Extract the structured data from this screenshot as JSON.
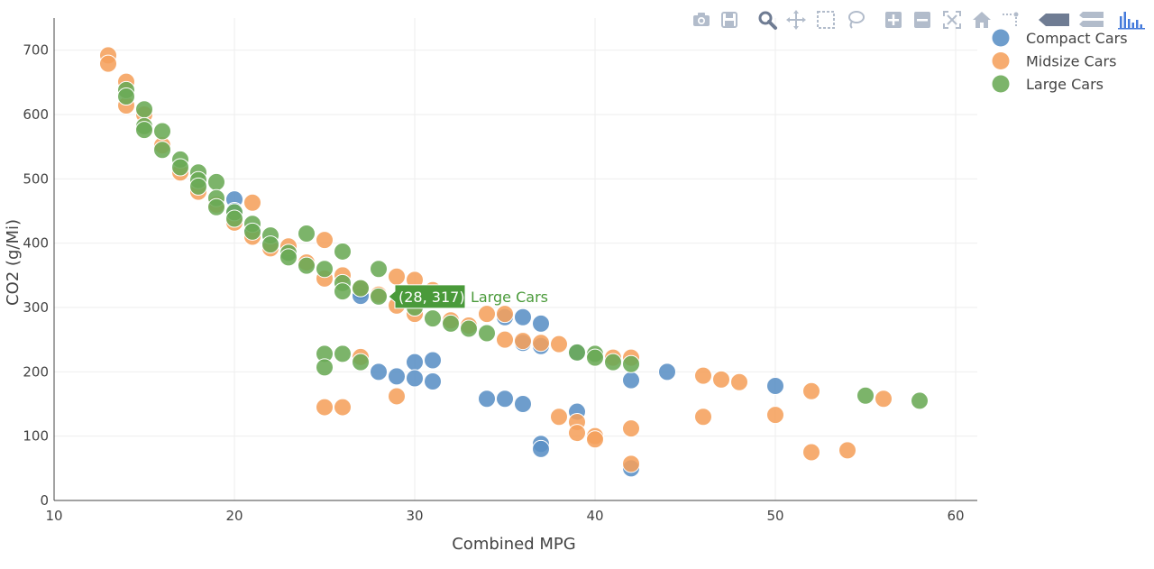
{
  "chart_data": {
    "type": "scatter",
    "title": "",
    "xlabel": "Combined MPG",
    "ylabel": "CO2 (g/Mi)",
    "xlim": [
      10,
      61.2
    ],
    "ylim": [
      0,
      750
    ],
    "xticks": [
      10,
      20,
      30,
      40,
      50,
      60
    ],
    "yticks": [
      0,
      100,
      200,
      300,
      400,
      500,
      600,
      700
    ],
    "grid": true,
    "legend_position": "top-right",
    "series": [
      {
        "name": "Compact Cars",
        "color": "#5a8fc5",
        "points": [
          [
            20,
            468
          ],
          [
            20,
            450
          ],
          [
            21,
            420
          ],
          [
            22,
            400
          ],
          [
            23,
            385
          ],
          [
            27,
            325
          ],
          [
            27,
            318
          ],
          [
            28,
            200
          ],
          [
            29,
            193
          ],
          [
            30,
            215
          ],
          [
            30,
            190
          ],
          [
            31,
            218
          ],
          [
            31,
            185
          ],
          [
            34,
            158
          ],
          [
            35,
            158
          ],
          [
            35,
            285
          ],
          [
            36,
            285
          ],
          [
            36,
            150
          ],
          [
            36,
            245
          ],
          [
            37,
            275
          ],
          [
            37,
            240
          ],
          [
            37,
            88
          ],
          [
            37,
            80
          ],
          [
            39,
            138
          ],
          [
            39,
            230
          ],
          [
            42,
            187
          ],
          [
            42,
            50
          ],
          [
            44,
            200
          ],
          [
            50,
            178
          ]
        ]
      },
      {
        "name": "Midsize Cars",
        "color": "#f5a05c",
        "points": [
          [
            13,
            692
          ],
          [
            13,
            679
          ],
          [
            14,
            651
          ],
          [
            14,
            614
          ],
          [
            15,
            600
          ],
          [
            16,
            552
          ],
          [
            17,
            510
          ],
          [
            18,
            480
          ],
          [
            19,
            460
          ],
          [
            20,
            432
          ],
          [
            21,
            463
          ],
          [
            21,
            410
          ],
          [
            22,
            392
          ],
          [
            23,
            395
          ],
          [
            24,
            370
          ],
          [
            25,
            405
          ],
          [
            25,
            345
          ],
          [
            25,
            145
          ],
          [
            26,
            350
          ],
          [
            26,
            145
          ],
          [
            27,
            223
          ],
          [
            27,
            330
          ],
          [
            28,
            320
          ],
          [
            29,
            348
          ],
          [
            29,
            303
          ],
          [
            29,
            162
          ],
          [
            30,
            343
          ],
          [
            30,
            290
          ],
          [
            31,
            327
          ],
          [
            32,
            280
          ],
          [
            33,
            272
          ],
          [
            34,
            290
          ],
          [
            35,
            290
          ],
          [
            35,
            250
          ],
          [
            36,
            248
          ],
          [
            37,
            245
          ],
          [
            38,
            243
          ],
          [
            38,
            130
          ],
          [
            39,
            122
          ],
          [
            39,
            105
          ],
          [
            40,
            100
          ],
          [
            40,
            95
          ],
          [
            41,
            222
          ],
          [
            42,
            222
          ],
          [
            42,
            112
          ],
          [
            42,
            57
          ],
          [
            46,
            194
          ],
          [
            46,
            130
          ],
          [
            47,
            188
          ],
          [
            48,
            184
          ],
          [
            50,
            133
          ],
          [
            52,
            170
          ],
          [
            52,
            75
          ],
          [
            54,
            78
          ],
          [
            56,
            158
          ]
        ]
      },
      {
        "name": "Large Cars",
        "color": "#6aaa55",
        "points": [
          [
            14,
            638
          ],
          [
            14,
            628
          ],
          [
            15,
            608
          ],
          [
            15,
            582
          ],
          [
            15,
            576
          ],
          [
            16,
            574
          ],
          [
            16,
            545
          ],
          [
            17,
            530
          ],
          [
            17,
            518
          ],
          [
            18,
            510
          ],
          [
            18,
            498
          ],
          [
            18,
            488
          ],
          [
            19,
            495
          ],
          [
            19,
            470
          ],
          [
            19,
            456
          ],
          [
            20,
            448
          ],
          [
            20,
            438
          ],
          [
            21,
            430
          ],
          [
            21,
            418
          ],
          [
            22,
            412
          ],
          [
            22,
            398
          ],
          [
            23,
            385
          ],
          [
            23,
            378
          ],
          [
            24,
            415
          ],
          [
            24,
            365
          ],
          [
            25,
            360
          ],
          [
            25,
            228
          ],
          [
            25,
            207
          ],
          [
            26,
            387
          ],
          [
            26,
            338
          ],
          [
            26,
            325
          ],
          [
            26,
            228
          ],
          [
            27,
            330
          ],
          [
            27,
            215
          ],
          [
            28,
            360
          ],
          [
            28,
            317
          ],
          [
            30,
            300
          ],
          [
            31,
            283
          ],
          [
            32,
            275
          ],
          [
            33,
            267
          ],
          [
            34,
            260
          ],
          [
            39,
            230
          ],
          [
            40,
            228
          ],
          [
            40,
            222
          ],
          [
            41,
            215
          ],
          [
            42,
            212
          ],
          [
            55,
            163
          ],
          [
            58,
            155
          ]
        ]
      }
    ],
    "hover": {
      "label": "(28, 317)",
      "series_label": "Large Cars",
      "x": 28,
      "y": 317,
      "color": "#4a9a3a"
    }
  },
  "modebar": {
    "buttons": [
      {
        "name": "camera-icon"
      },
      {
        "name": "save-icon"
      },
      {
        "name": "zoom-icon"
      },
      {
        "name": "pan-icon"
      },
      {
        "name": "box-select-icon"
      },
      {
        "name": "lasso-select-icon"
      },
      {
        "name": "zoom-in-icon"
      },
      {
        "name": "zoom-out-icon"
      },
      {
        "name": "autoscale-icon"
      },
      {
        "name": "home-icon"
      },
      {
        "name": "spike-lines-icon"
      },
      {
        "name": "hover-closest-icon"
      },
      {
        "name": "hover-compare-icon"
      },
      {
        "name": "plotly-logo-icon"
      }
    ]
  }
}
